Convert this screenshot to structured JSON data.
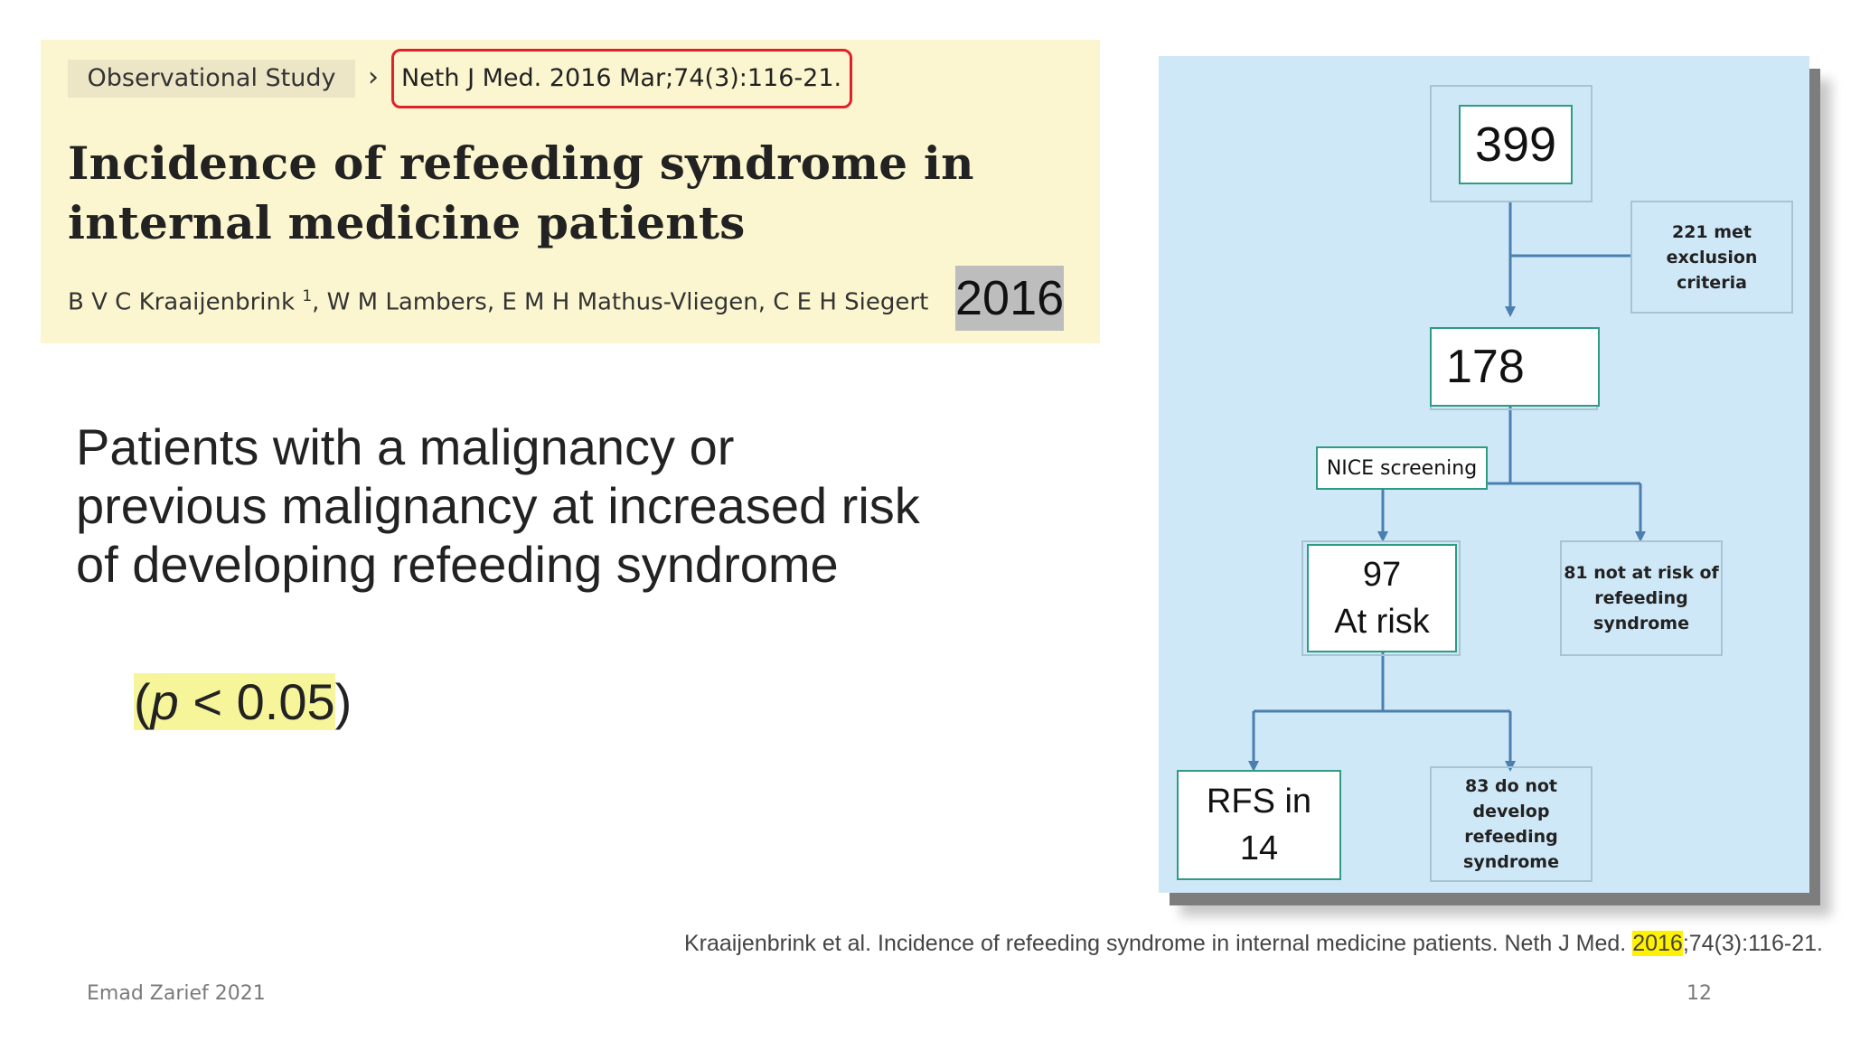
{
  "article": {
    "study_type": "Observational Study",
    "journal_ref": "Neth J Med. 2016 Mar;74(3):116-21.",
    "title": "Incidence of refeeding syndrome in internal medicine patients",
    "authors_first": "B V C Kraaijenbrink",
    "authors_sup": "1",
    "authors_rest": ", W M Lambers, E M H Mathus-Vliegen, C E H Siegert",
    "year": "2016"
  },
  "finding": {
    "text": "Patients with a malignancy or previous malignancy at increased risk of developing refeeding syndrome",
    "p_open": "(",
    "p_symbol": "p",
    "p_rest": " < 0.05",
    "p_close": ")"
  },
  "flowchart": {
    "total": "399",
    "excluded": "221 met exclusion criteria",
    "included": "178",
    "screening": "NICE screening",
    "at_risk_count": "97",
    "at_risk_label": "At risk",
    "not_at_risk": "81 not at risk of refeeding syndrome",
    "rfs_label": "RFS in",
    "rfs_count": "14",
    "no_rfs": "83 do not develop refeeding syndrome"
  },
  "footer": {
    "reference_pre": "Kraaijenbrink et al. Incidence of refeeding syndrome in internal medicine patients. Neth J Med. ",
    "reference_year": "2016",
    "reference_post": ";74(3):116-21.",
    "author": "Emad Zarief 2021",
    "page": "12"
  },
  "colors": {
    "citation_background": "#fbf6cf",
    "journal_ref_border": "#e0202a",
    "highlight_yellow": "#fff200",
    "flowchart_background": "#cfe8f7",
    "flow_line": "#4a7fb0",
    "box_border": "#2e9b82"
  }
}
